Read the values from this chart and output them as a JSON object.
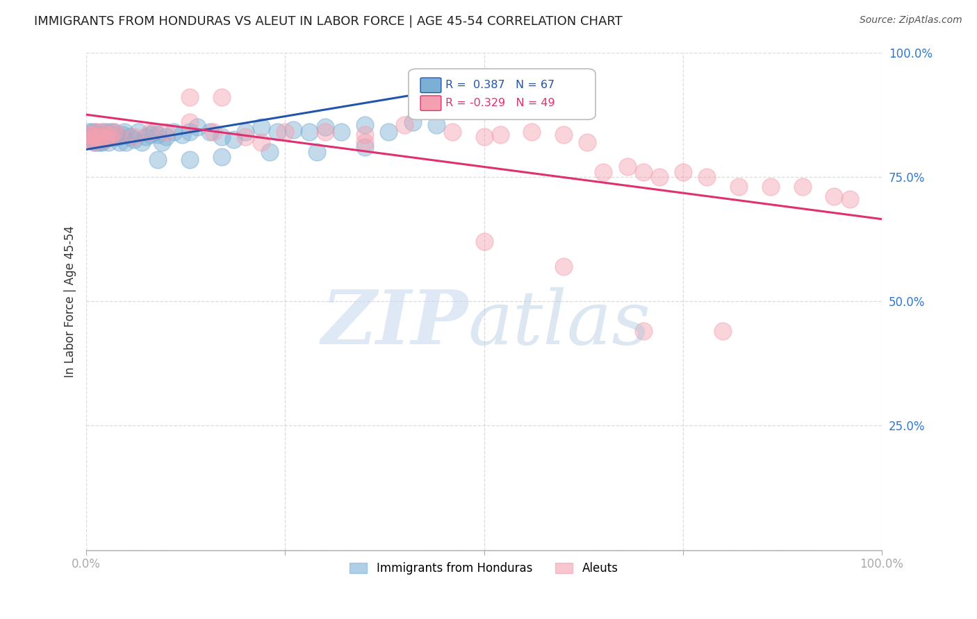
{
  "title": "IMMIGRANTS FROM HONDURAS VS ALEUT IN LABOR FORCE | AGE 45-54 CORRELATION CHART",
  "source": "Source: ZipAtlas.com",
  "ylabel": "In Labor Force | Age 45-54",
  "xlim": [
    0.0,
    1.0
  ],
  "ylim": [
    0.0,
    1.0
  ],
  "background_color": "#ffffff",
  "grid_color": "#cccccc",
  "blue_color": "#7bafd4",
  "pink_color": "#f4a0b0",
  "blue_line_color": "#2255aa",
  "pink_line_color": "#e03070",
  "legend_R_blue": "0.387",
  "legend_N_blue": "67",
  "legend_R_pink": "-0.329",
  "legend_N_pink": "49",
  "blue_trend_x0": 0.0,
  "blue_trend_y0": 0.805,
  "blue_trend_x1": 0.45,
  "blue_trend_y1": 0.925,
  "pink_trend_x0": 0.0,
  "pink_trend_y0": 0.875,
  "pink_trend_x1": 1.0,
  "pink_trend_y1": 0.665,
  "blue_x": [
    0.003,
    0.005,
    0.006,
    0.007,
    0.008,
    0.009,
    0.01,
    0.01,
    0.011,
    0.012,
    0.013,
    0.014,
    0.015,
    0.016,
    0.017,
    0.018,
    0.019,
    0.02,
    0.02,
    0.022,
    0.023,
    0.025,
    0.027,
    0.028,
    0.03,
    0.032,
    0.035,
    0.038,
    0.04,
    0.042,
    0.045,
    0.048,
    0.05,
    0.055,
    0.06,
    0.065,
    0.07,
    0.075,
    0.08,
    0.085,
    0.09,
    0.095,
    0.1,
    0.11,
    0.12,
    0.13,
    0.14,
    0.155,
    0.17,
    0.185,
    0.2,
    0.22,
    0.24,
    0.26,
    0.28,
    0.3,
    0.32,
    0.35,
    0.38,
    0.41,
    0.44,
    0.35,
    0.29,
    0.23,
    0.17,
    0.13,
    0.09
  ],
  "blue_y": [
    0.84,
    0.835,
    0.83,
    0.825,
    0.84,
    0.83,
    0.835,
    0.82,
    0.83,
    0.84,
    0.82,
    0.835,
    0.825,
    0.83,
    0.82,
    0.835,
    0.82,
    0.825,
    0.84,
    0.83,
    0.825,
    0.84,
    0.835,
    0.82,
    0.84,
    0.83,
    0.84,
    0.835,
    0.83,
    0.82,
    0.835,
    0.84,
    0.82,
    0.83,
    0.825,
    0.84,
    0.82,
    0.83,
    0.835,
    0.84,
    0.835,
    0.82,
    0.83,
    0.84,
    0.835,
    0.84,
    0.85,
    0.84,
    0.83,
    0.825,
    0.84,
    0.85,
    0.84,
    0.845,
    0.84,
    0.85,
    0.84,
    0.855,
    0.84,
    0.86,
    0.855,
    0.81,
    0.8,
    0.8,
    0.79,
    0.785,
    0.785
  ],
  "pink_x": [
    0.003,
    0.005,
    0.007,
    0.009,
    0.011,
    0.013,
    0.015,
    0.018,
    0.021,
    0.024,
    0.027,
    0.03,
    0.035,
    0.04,
    0.06,
    0.08,
    0.1,
    0.13,
    0.16,
    0.2,
    0.25,
    0.3,
    0.35,
    0.4,
    0.46,
    0.5,
    0.52,
    0.56,
    0.6,
    0.63,
    0.65,
    0.68,
    0.7,
    0.72,
    0.75,
    0.78,
    0.82,
    0.86,
    0.9,
    0.94,
    0.96,
    0.13,
    0.17,
    0.22,
    0.35,
    0.5,
    0.6,
    0.7,
    0.8
  ],
  "pink_y": [
    0.835,
    0.825,
    0.835,
    0.82,
    0.83,
    0.84,
    0.825,
    0.83,
    0.84,
    0.825,
    0.835,
    0.83,
    0.84,
    0.835,
    0.83,
    0.84,
    0.84,
    0.86,
    0.84,
    0.83,
    0.84,
    0.84,
    0.835,
    0.855,
    0.84,
    0.83,
    0.835,
    0.84,
    0.835,
    0.82,
    0.76,
    0.77,
    0.76,
    0.75,
    0.76,
    0.75,
    0.73,
    0.73,
    0.73,
    0.71,
    0.705,
    0.91,
    0.91,
    0.82,
    0.82,
    0.62,
    0.57,
    0.44,
    0.44
  ]
}
